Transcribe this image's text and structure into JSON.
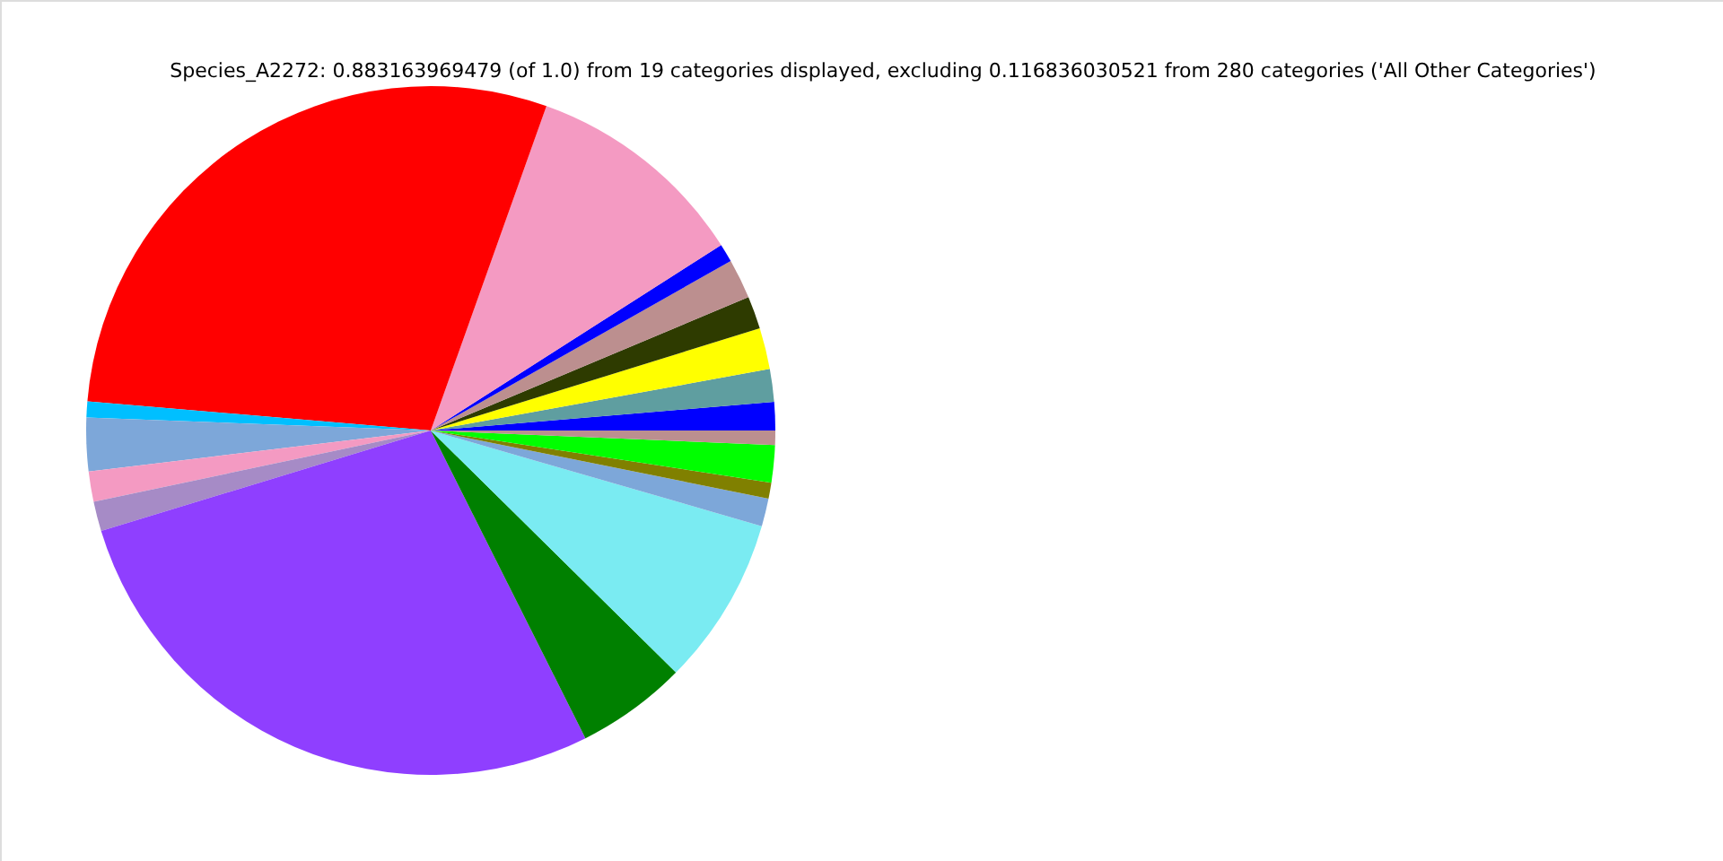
{
  "chart_data": {
    "type": "pie",
    "title": "Species_A2272: 0.883163969479 (of 1.0) from 19 categories displayed, excluding 0.116836030521 from 280 categories ('All Other Categories')",
    "categories": [
      null,
      null,
      null,
      null,
      null,
      null,
      null,
      null,
      null,
      null,
      null,
      null,
      null,
      null,
      null,
      null,
      null,
      null,
      null
    ],
    "values": [
      1.33,
      1.53,
      1.94,
      1.53,
      1.86,
      0.86,
      10.5,
      29.1,
      0.75,
      2.5,
      1.42,
      1.39,
      27.7,
      5.19,
      7.92,
      1.31,
      0.75,
      1.75,
      0.67
    ],
    "colors": [
      "#0000ff",
      "#5f9ea0",
      "#ffff00",
      "#2e3b00",
      "#bc8f8f",
      "#0000ff",
      "#f49ac2",
      "#ff0000",
      "#00bfff",
      "#7da7d9",
      "#f49ac2",
      "#a68bc6",
      "#8f3fff",
      "#008000",
      "#7aebf2",
      "#7da7d9",
      "#808000",
      "#00ff00",
      "#bc8f8f"
    ]
  }
}
